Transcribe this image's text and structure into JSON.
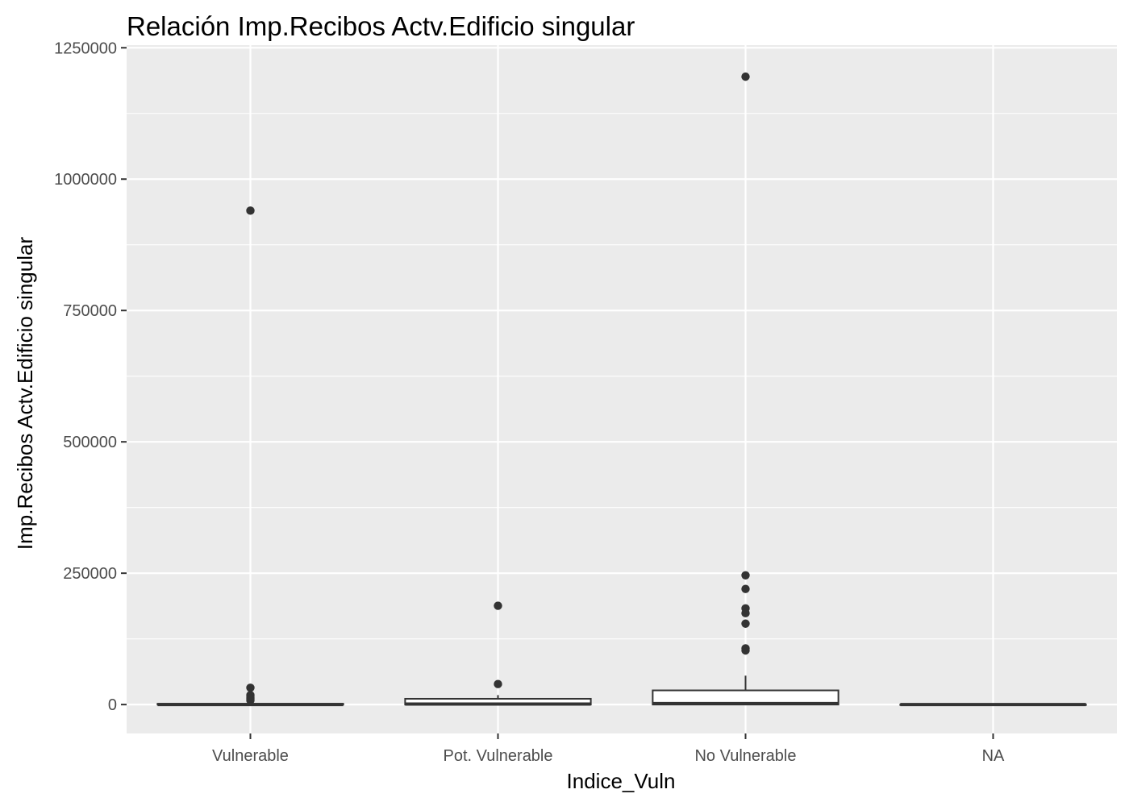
{
  "chart_data": {
    "type": "boxplot",
    "title": "Relación  Imp.Recibos Actv.Edificio singular",
    "xlabel": "Indice_Vuln",
    "ylabel": "Imp.Recibos Actv.Edificio singular",
    "ylim": [
      -55000,
      1255000
    ],
    "y_ticks": [
      0,
      250000,
      500000,
      750000,
      1000000,
      1250000
    ],
    "y_tick_labels": [
      "0",
      "250000",
      "500000",
      "750000",
      "1000000",
      "1250000"
    ],
    "grid": true,
    "legend": "none",
    "categories": [
      "Vulnerable",
      "Pot. Vulnerable",
      "No Vulnerable",
      "NA"
    ],
    "boxes": [
      {
        "category": "Vulnerable",
        "min": 0,
        "q1": 0,
        "median": 0,
        "q3": 1500,
        "max": 3500,
        "outliers": [
          940000,
          32000,
          18000,
          14000,
          11000,
          8000
        ]
      },
      {
        "category": "Pot. Vulnerable",
        "min": 0,
        "q1": 0,
        "median": 1000,
        "q3": 11000,
        "max": 18000,
        "outliers": [
          188000,
          39000
        ]
      },
      {
        "category": "No Vulnerable",
        "min": 0,
        "q1": 0,
        "median": 2000,
        "q3": 27000,
        "max": 55000,
        "outliers": [
          1195000,
          246000,
          220000,
          183000,
          174000,
          154000,
          107000,
          103000
        ]
      },
      {
        "category": "NA",
        "min": 0,
        "q1": 0,
        "median": 0,
        "q3": 0,
        "max": 0,
        "outliers": []
      }
    ],
    "colors": {
      "panel": "#ebebeb",
      "grid_major": "#ffffff",
      "box_fill": "#ffffff",
      "box_stroke": "#333333",
      "outlier": "#333333",
      "tick_text": "#4d4d4d",
      "tick_mark": "#333333"
    }
  }
}
